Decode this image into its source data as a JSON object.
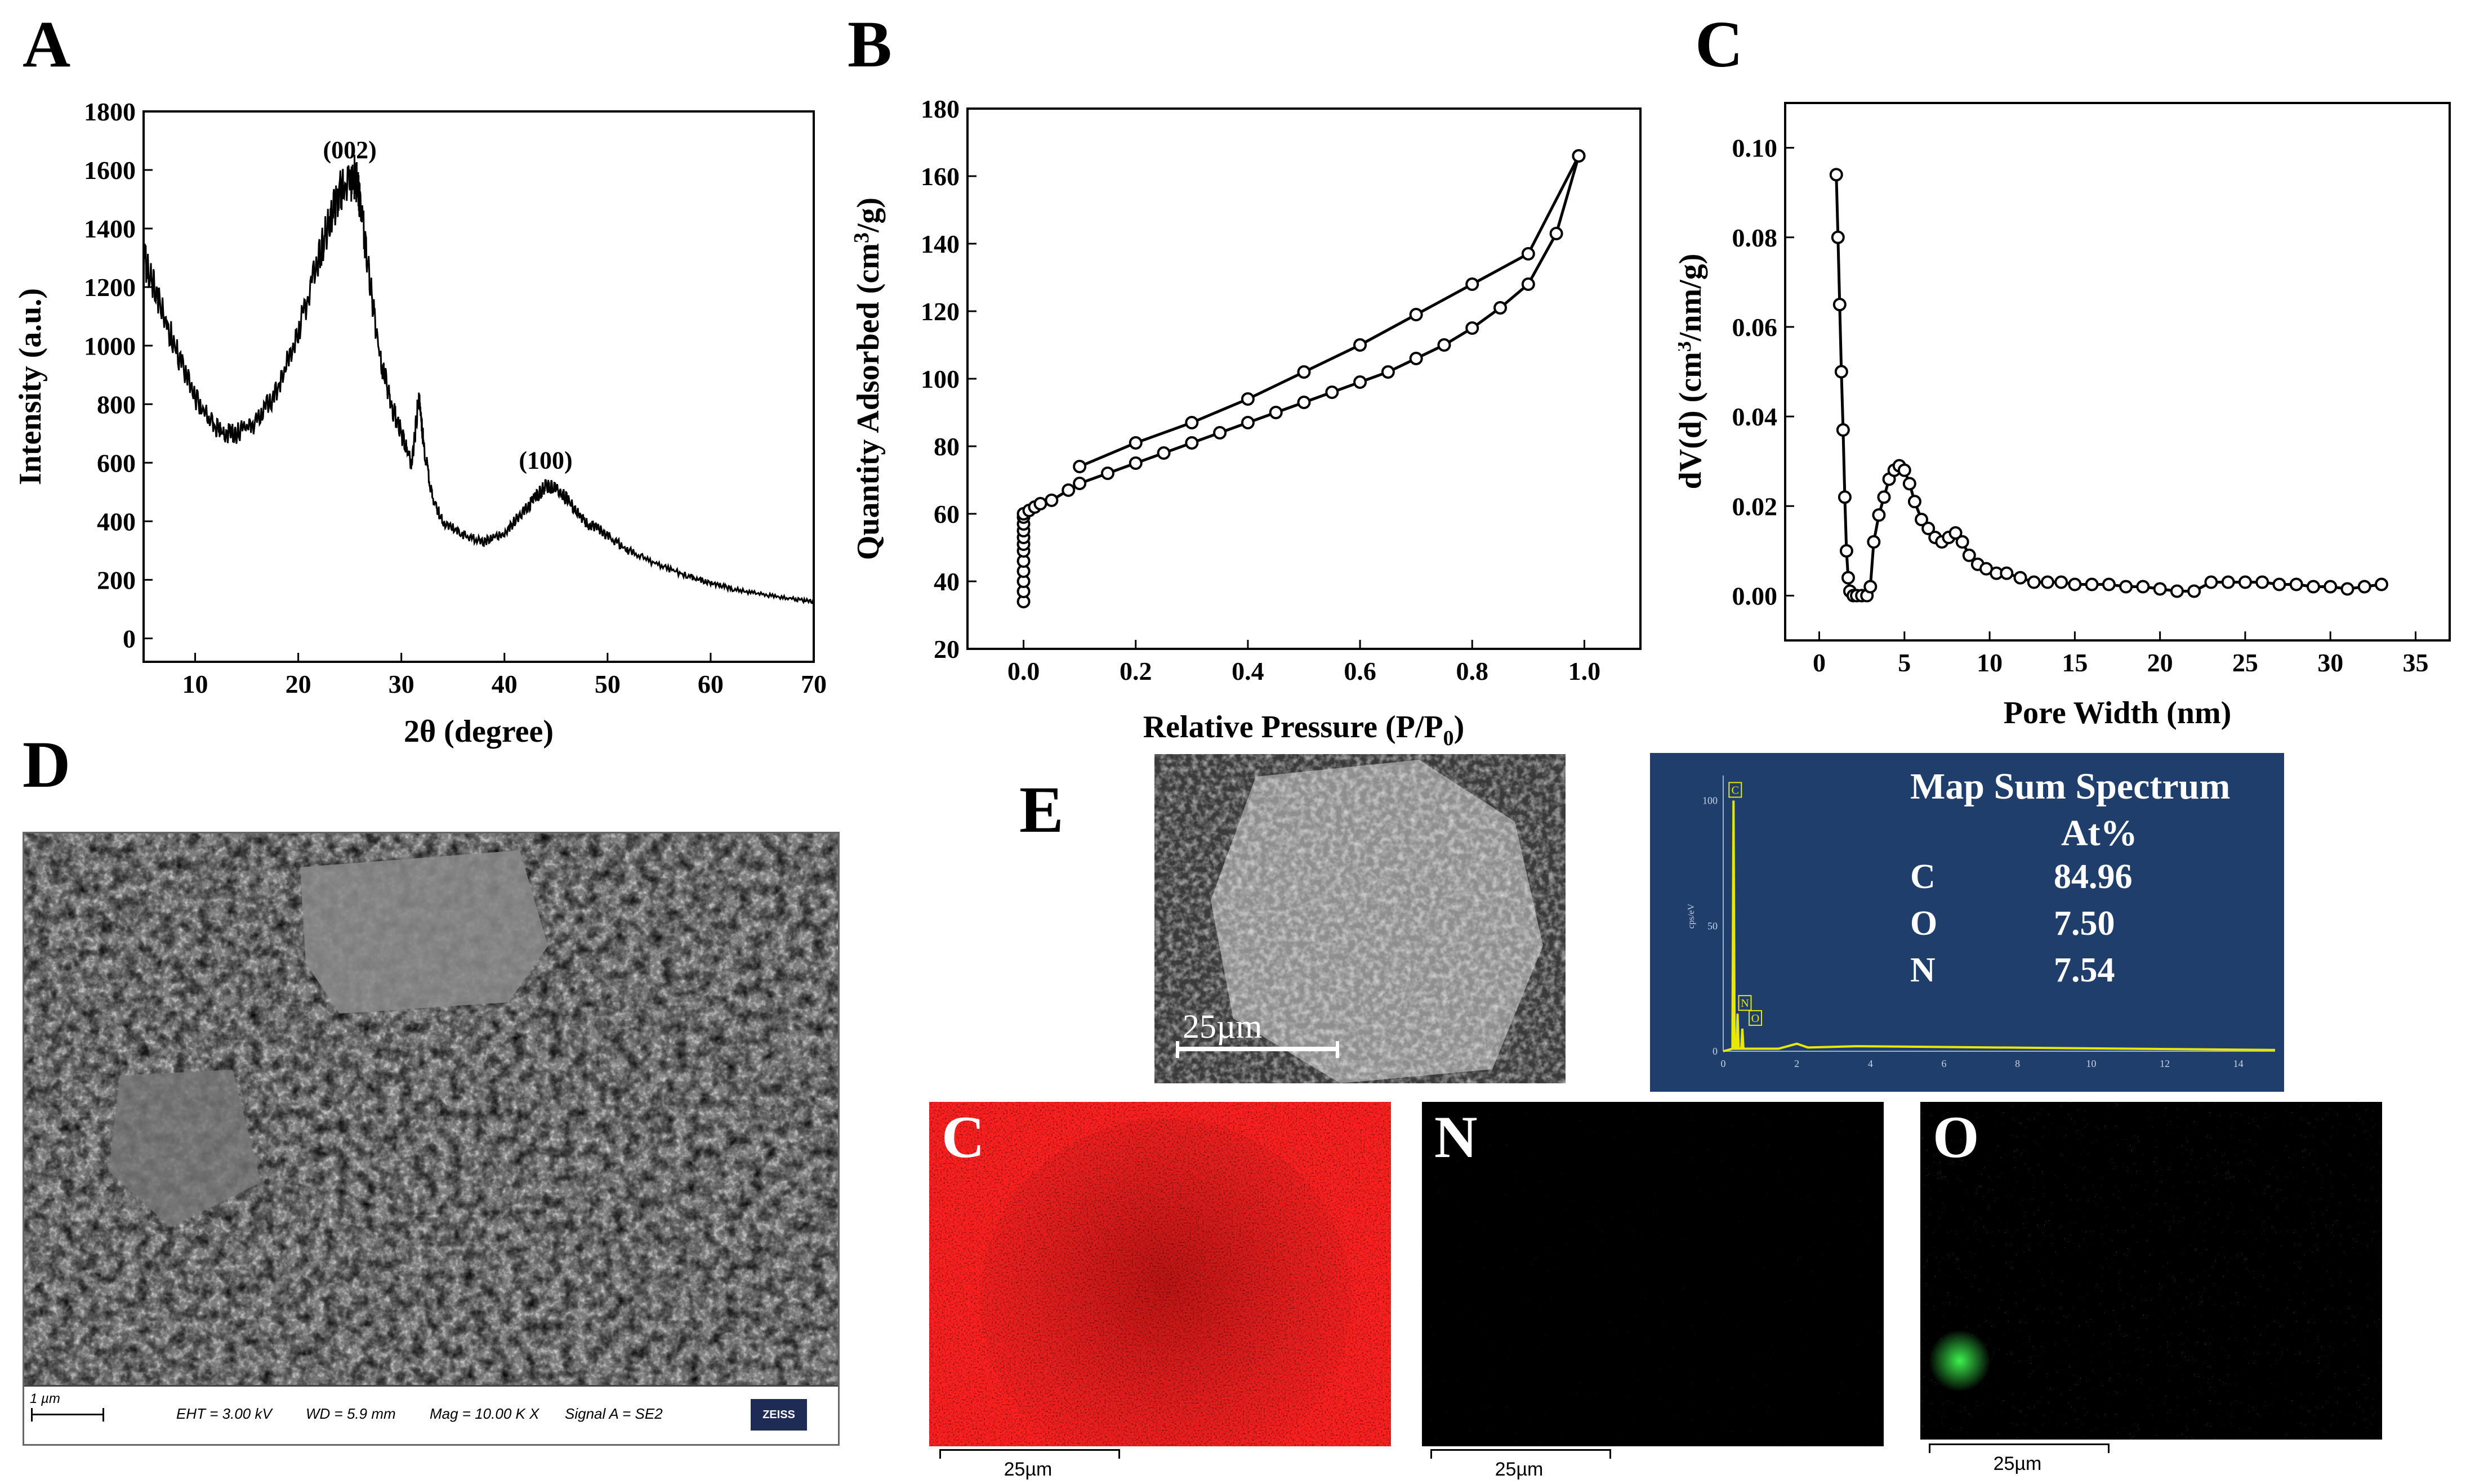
{
  "panels": {
    "a": "A",
    "b": "B",
    "c": "C",
    "d": "D",
    "e": "E"
  },
  "chart_data": [
    {
      "panel": "A",
      "type": "line",
      "xlabel": "2θ (degree)",
      "ylabel": "Intensity (a.u.)",
      "xlim": [
        5,
        70
      ],
      "ylim": [
        -80,
        1800
      ],
      "xticks": [
        10,
        20,
        30,
        40,
        50,
        60,
        70
      ],
      "yticks": [
        0,
        200,
        400,
        600,
        800,
        1000,
        1200,
        1400,
        1600,
        1800
      ],
      "annotations": [
        {
          "text": "(002)",
          "x": 25,
          "y": 1640
        },
        {
          "text": "(100)",
          "x": 44,
          "y": 580
        }
      ],
      "x": [
        5,
        6,
        8,
        10,
        12,
        13,
        14,
        16,
        18,
        20,
        22,
        23,
        24,
        25,
        25.5,
        26,
        27,
        28,
        29,
        30,
        31,
        31.7,
        32.2,
        33,
        34,
        36,
        38,
        40,
        42,
        43,
        44,
        45,
        46,
        47,
        48,
        49,
        50,
        52,
        55,
        58,
        60,
        62,
        65,
        68,
        70
      ],
      "y": [
        1300,
        1200,
        1000,
        820,
        720,
        700,
        700,
        740,
        850,
        1050,
        1300,
        1420,
        1520,
        1560,
        1580,
        1500,
        1200,
        950,
        800,
        700,
        590,
        830,
        650,
        480,
        400,
        350,
        330,
        360,
        440,
        480,
        520,
        510,
        480,
        430,
        390,
        380,
        350,
        300,
        250,
        210,
        190,
        170,
        150,
        135,
        125
      ]
    },
    {
      "panel": "B",
      "type": "scatter",
      "xlabel": "Relative Pressure (P/P",
      "xlabel_sub": "0",
      "xlabel_end": ")",
      "ylabel": "Quantity Adsorbed (cm",
      "ylabel_sup": "3",
      "ylabel_end": "/g)",
      "xlim": [
        -0.1,
        1.1
      ],
      "ylim": [
        20,
        180
      ],
      "xticks": [
        0.0,
        0.2,
        0.4,
        0.6,
        0.8,
        1.0
      ],
      "yticks": [
        20,
        40,
        60,
        80,
        100,
        120,
        140,
        160,
        180
      ],
      "series": [
        {
          "x": [
            0.0,
            0.0,
            0.0,
            0.0,
            0.0,
            0.0,
            0.0,
            0.0,
            0.0,
            0.0,
            0.0,
            0.0,
            0.01,
            0.02,
            0.03,
            0.05,
            0.08,
            0.1,
            0.15,
            0.2,
            0.25,
            0.3,
            0.35,
            0.4,
            0.45,
            0.5,
            0.55,
            0.6,
            0.65,
            0.7,
            0.75,
            0.8,
            0.85,
            0.9,
            0.95,
            0.99
          ],
          "y": [
            34,
            37,
            40,
            43,
            46,
            49,
            51,
            53,
            55,
            57,
            59,
            60,
            61,
            62,
            63,
            64,
            67,
            69,
            72,
            75,
            78,
            81,
            84,
            87,
            90,
            93,
            96,
            99,
            102,
            106,
            110,
            115,
            121,
            128,
            143,
            166
          ]
        },
        {
          "x": [
            0.99,
            0.9,
            0.8,
            0.7,
            0.6,
            0.5,
            0.4,
            0.3,
            0.2,
            0.1
          ],
          "y": [
            166,
            137,
            128,
            119,
            110,
            102,
            94,
            87,
            81,
            74
          ]
        }
      ]
    },
    {
      "panel": "C",
      "type": "scatter",
      "xlabel": "Pore Width (nm)",
      "ylabel": "dV(d) (cm",
      "ylabel_sup": "3",
      "ylabel_end": "/nm/g)",
      "xlim": [
        -2,
        37
      ],
      "ylim": [
        -0.01,
        0.11
      ],
      "xticks": [
        0,
        5,
        10,
        15,
        20,
        25,
        30,
        35
      ],
      "yticks": [
        0.0,
        0.02,
        0.04,
        0.06,
        0.08,
        0.1
      ],
      "x": [
        1.0,
        1.1,
        1.2,
        1.3,
        1.4,
        1.5,
        1.6,
        1.7,
        1.8,
        2.0,
        2.2,
        2.5,
        2.8,
        3.0,
        3.2,
        3.5,
        3.8,
        4.1,
        4.4,
        4.7,
        5.0,
        5.3,
        5.6,
        6.0,
        6.4,
        6.8,
        7.2,
        7.6,
        8.0,
        8.4,
        8.8,
        9.3,
        9.8,
        10.4,
        11.0,
        11.8,
        12.6,
        13.4,
        14.2,
        15.0,
        16.0,
        17.0,
        18.0,
        19.0,
        20.0,
        21.0,
        22.0,
        23.0,
        24.0,
        25.0,
        26.0,
        27.0,
        28.0,
        29.0,
        30.0,
        31.0,
        32.0,
        33.0
      ],
      "y": [
        0.094,
        0.08,
        0.065,
        0.05,
        0.037,
        0.022,
        0.01,
        0.004,
        0.001,
        0.0,
        0.0,
        0.0,
        0.0,
        0.002,
        0.012,
        0.018,
        0.022,
        0.026,
        0.028,
        0.029,
        0.028,
        0.025,
        0.021,
        0.017,
        0.015,
        0.013,
        0.012,
        0.013,
        0.014,
        0.012,
        0.009,
        0.007,
        0.006,
        0.005,
        0.005,
        0.004,
        0.003,
        0.003,
        0.003,
        0.0025,
        0.0025,
        0.0025,
        0.002,
        0.002,
        0.0015,
        0.001,
        0.001,
        0.003,
        0.003,
        0.003,
        0.003,
        0.0025,
        0.0025,
        0.002,
        0.002,
        0.0015,
        0.002,
        0.0025
      ]
    },
    {
      "panel": "E-spectrum",
      "type": "line",
      "title": "Map Sum Spectrum",
      "table_header": "At%",
      "elements": [
        {
          "el": "C",
          "at": "84.96"
        },
        {
          "el": "O",
          "at": "7.50"
        },
        {
          "el": "N",
          "at": "7.54"
        }
      ],
      "xlim": [
        0,
        15
      ],
      "ylim": [
        0,
        110
      ],
      "xticks": [
        0,
        2,
        4,
        6,
        8,
        10,
        12,
        14
      ],
      "yticks": [
        0,
        50,
        100
      ],
      "ylabel": "cps/eV",
      "peaks": [
        {
          "label": "C",
          "x": 0.28,
          "y": 100
        },
        {
          "label": "N",
          "x": 0.39,
          "y": 15
        },
        {
          "label": "O",
          "x": 0.52,
          "y": 9
        }
      ]
    }
  ],
  "sem_d": {
    "scale_label": "1 µm",
    "eht": "EHT =  3.00 kV",
    "wd": "WD =  5.9 mm",
    "mag": "Mag =  10.00 K X",
    "signal": "Signal A = SE2",
    "logo": "ZEISS"
  },
  "sem_e": {
    "scale_label": "25µm"
  },
  "maps": [
    {
      "label": "C",
      "scale": "25µm",
      "color": "#ff1e1e"
    },
    {
      "label": "N",
      "scale": "25µm",
      "color": "#e6e64a"
    },
    {
      "label": "O",
      "scale": "25µm",
      "color": "#2ad23a"
    }
  ]
}
